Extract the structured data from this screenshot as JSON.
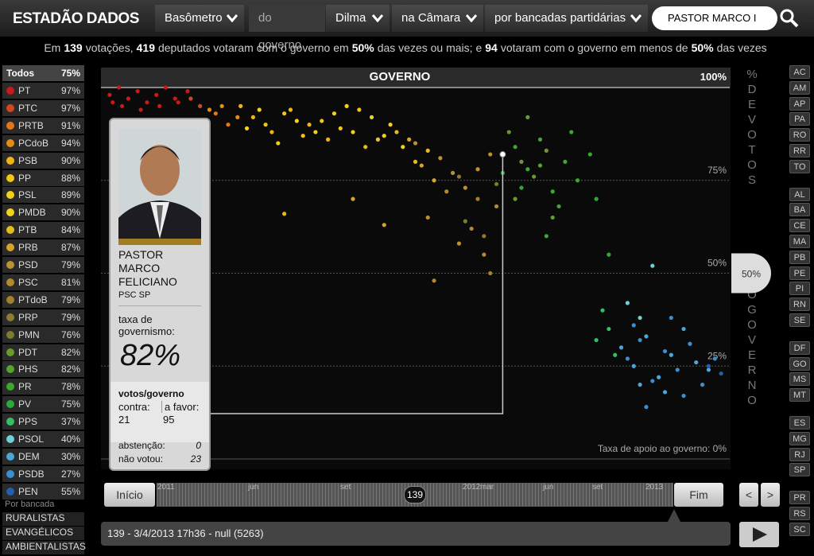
{
  "header": {
    "logo": "ESTADÃO DADOS",
    "menus": [
      "Basômetro",
      "do governo",
      "Dilma",
      "na Câmara",
      "por bancadas partidárias"
    ],
    "search": "PASTOR MARCO I"
  },
  "summary": [
    "Em",
    "139",
    "votações,",
    "419",
    "deputados votaram com o governo em",
    "50%",
    "das vezes ou mais; e",
    "94",
    "votaram com o governo em menos de",
    "50%",
    "das vezes"
  ],
  "sidebar": {
    "all": {
      "name": "Todos",
      "pct": {
        "value": 75,
        "label": "75%"
      }
    },
    "parties": [
      {
        "name": "PT",
        "color": "#c8191b",
        "pct": {
          "value": 97,
          "label": "97%"
        },
        "dots": {
          "x": [
            1,
            2.5,
            4,
            5.5,
            7,
            8.5,
            10,
            11.5,
            3,
            6,
            9,
            12,
            1.5,
            13.5
          ],
          "y": [
            98,
            100,
            97,
            99,
            96,
            98,
            100,
            97,
            95,
            94,
            95,
            96,
            96,
            99
          ]
        }
      },
      {
        "name": "PTC",
        "color": "#d4461e",
        "pct": {
          "value": 97,
          "label": "97%"
        },
        "dots": {
          "x": [
            14,
            15.5
          ],
          "y": [
            97,
            95
          ]
        }
      },
      {
        "name": "PRTB",
        "color": "#e0781a",
        "pct": {
          "value": 91,
          "label": "91%"
        },
        "dots": {
          "x": [
            18,
            20
          ],
          "y": [
            93,
            90
          ]
        }
      },
      {
        "name": "PCdoB",
        "color": "#e68c15",
        "pct": {
          "value": 94,
          "label": "94%"
        },
        "dots": {
          "x": [
            19,
            21.5,
            17
          ],
          "y": [
            95,
            92,
            94
          ]
        }
      },
      {
        "name": "PSB",
        "color": "#f0b50f",
        "pct": {
          "value": 90,
          "label": "90%"
        },
        "dots": {
          "x": [
            24,
            27,
            30,
            33,
            36,
            22
          ],
          "y": [
            92,
            88,
            94,
            90,
            86,
            95
          ]
        }
      },
      {
        "name": "PP",
        "color": "#f2c615",
        "pct": {
          "value": 88,
          "label": "88%"
        },
        "dots": {
          "x": [
            26,
            29,
            32,
            35,
            38,
            41,
            44
          ],
          "y": [
            90,
            93,
            87,
            91,
            89,
            94,
            86
          ]
        }
      },
      {
        "name": "PSL",
        "color": "#f2d018",
        "pct": {
          "value": 89,
          "label": "89%"
        },
        "dots": {
          "x": [
            28,
            34
          ],
          "y": [
            85,
            88
          ]
        }
      },
      {
        "name": "PMDB",
        "color": "#f3d31a",
        "pct": {
          "value": 90,
          "label": "90%"
        },
        "dots": {
          "x": [
            23,
            25,
            31,
            37,
            40,
            43,
            46,
            48,
            39,
            45
          ],
          "y": [
            89,
            94,
            91,
            93,
            88,
            92,
            90,
            84,
            95,
            87
          ]
        }
      },
      {
        "name": "PTB",
        "color": "#e2bd1b",
        "pct": {
          "value": 84,
          "label": "84%"
        },
        "dots": {
          "x": [
            42,
            47,
            50,
            52,
            29
          ],
          "y": [
            84,
            88,
            80,
            83,
            66
          ]
        }
      },
      {
        "name": "PRB",
        "color": "#d4a52a",
        "pct": {
          "value": 87,
          "label": "87%"
        },
        "dots": {
          "x": [
            49,
            51,
            53,
            40,
            45
          ],
          "y": [
            86,
            79,
            75,
            70,
            63
          ]
        }
      },
      {
        "name": "PSD",
        "color": "#bc9230",
        "pct": {
          "value": 79,
          "label": "79%"
        },
        "dots": {
          "x": [
            50,
            54,
            56,
            58,
            60,
            62,
            57,
            52
          ],
          "y": [
            85,
            81,
            77,
            73,
            78,
            82,
            58,
            65
          ]
        }
      },
      {
        "name": "PSC",
        "color": "#b28a30",
        "pct": {
          "value": 81,
          "label": "81%"
        },
        "dots": {
          "x": [
            55,
            59,
            61,
            63,
            53
          ],
          "y": [
            72,
            62,
            55,
            68,
            48
          ]
        }
      },
      {
        "name": "PTdoB",
        "color": "#a58030",
        "pct": {
          "value": 79,
          "label": "79%"
        },
        "dots": {
          "x": [
            60,
            62
          ],
          "y": [
            70,
            50
          ]
        }
      },
      {
        "name": "PRP",
        "color": "#8f7b35",
        "pct": {
          "value": 79,
          "label": "79%"
        },
        "dots": {
          "x": [
            57,
            61
          ],
          "y": [
            76,
            60
          ]
        }
      },
      {
        "name": "PMN",
        "color": "#7d7d30",
        "pct": {
          "value": 76,
          "label": "76%"
        },
        "dots": {
          "x": [
            63,
            58
          ],
          "y": [
            74,
            64
          ]
        }
      },
      {
        "name": "PDT",
        "color": "#6a9a2c",
        "pct": {
          "value": 82,
          "label": "82%"
        },
        "dots": {
          "x": [
            65,
            67,
            69,
            71,
            66
          ],
          "y": [
            88,
            80,
            76,
            83,
            70
          ]
        }
      },
      {
        "name": "PHS",
        "color": "#55a52b",
        "pct": {
          "value": 82,
          "label": "82%"
        },
        "dots": {
          "x": [
            68,
            70,
            72
          ],
          "y": [
            92,
            79,
            65
          ]
        }
      },
      {
        "name": "PR",
        "color": "#3ca82e",
        "pct": {
          "value": 78,
          "label": "78%"
        },
        "dots": {
          "x": [
            66,
            68,
            70,
            72,
            74,
            76,
            78,
            73,
            75,
            71
          ],
          "y": [
            84,
            78,
            86,
            72,
            80,
            75,
            82,
            68,
            88,
            60
          ]
        }
      },
      {
        "name": "PV",
        "color": "#2ea838",
        "pct": {
          "value": 75,
          "label": "75%"
        },
        "dots": {
          "x": [
            64,
            67,
            79,
            81
          ],
          "y": [
            77,
            73,
            70,
            55
          ]
        }
      },
      {
        "name": "PPS",
        "color": "#33c060",
        "pct": {
          "value": 37,
          "label": "37%"
        },
        "dots": {
          "x": [
            80,
            81,
            79,
            82
          ],
          "y": [
            40,
            35,
            32,
            28
          ]
        }
      },
      {
        "name": "PSOL",
        "color": "#6fd0d8",
        "pct": {
          "value": 40,
          "label": "40%"
        },
        "dots": {
          "x": [
            84,
            86,
            88
          ],
          "y": [
            42,
            38,
            52
          ]
        }
      },
      {
        "name": "DEM",
        "color": "#4aa7d8",
        "pct": {
          "value": 30,
          "label": "30%"
        },
        "dots": {
          "x": [
            83,
            85,
            87,
            89,
            91,
            93,
            95,
            97,
            90,
            86
          ],
          "y": [
            30,
            25,
            33,
            22,
            28,
            35,
            26,
            24,
            18,
            20
          ]
        }
      },
      {
        "name": "PSDB",
        "color": "#3a8fd0",
        "pct": {
          "value": 27,
          "label": "27%"
        },
        "dots": {
          "x": [
            84,
            86,
            88,
            90,
            92,
            94,
            96,
            98,
            87,
            93,
            85,
            91
          ],
          "y": [
            27,
            32,
            21,
            29,
            24,
            31,
            20,
            27,
            14,
            17,
            36,
            38
          ]
        }
      },
      {
        "name": "PEN",
        "color": "#2060b0",
        "pct": {
          "value": 55,
          "label": "55%"
        },
        "dots": {
          "x": [
            97,
            99
          ],
          "y": [
            25,
            23
          ]
        }
      }
    ],
    "group_title": "Por bancada",
    "groups": [
      "RURALISTAS",
      "EVANGÉLICOS",
      "AMBIENTALISTAS"
    ]
  },
  "plot": {
    "title": "GOVERNO",
    "ylim": [
      0,
      100
    ],
    "xlim": [
      0,
      100
    ],
    "yticks": [
      {
        "value": 100,
        "label": "100%"
      },
      {
        "value": 75,
        "label": "75%"
      },
      {
        "value": 50,
        "label": "50%"
      },
      {
        "value": 25,
        "label": "25%"
      },
      {
        "value": 0,
        "label": "Taxa de apoio ao governo: 0%"
      }
    ],
    "axis_top": "% DE VOTOS",
    "axis_bottom": "O GOVERNO",
    "threshold": {
      "value": 50,
      "label": "50%"
    },
    "selected": {
      "x": 64
    }
  },
  "card": {
    "name": "PASTOR MARCO FELICIANO",
    "party": "PSC SP",
    "rate_title": "taxa de governismo:",
    "rate": {
      "value": 82,
      "label": "82%"
    },
    "votes_title": "votos/governo",
    "against_label": "contra:",
    "against": 21,
    "favor_label": "a favor:",
    "favor": 95,
    "abstention_label": "abstenção:",
    "abstention": 0,
    "absent_label": "não votou:",
    "absent": 23
  },
  "states": [
    [
      "AC",
      "AM",
      "AP",
      "PA",
      "RO",
      "RR",
      "TO"
    ],
    [
      "AL",
      "BA",
      "CE",
      "MA",
      "PB",
      "PE",
      "PI",
      "RN",
      "SE"
    ],
    [
      "DF",
      "GO",
      "MS",
      "MT"
    ],
    [
      "ES",
      "MG",
      "RJ",
      "SP"
    ],
    [
      "PR",
      "RS",
      "SC"
    ]
  ],
  "timeline": {
    "start": "Início",
    "end": "Fim",
    "labels": [
      "2011",
      "jun",
      "set",
      "2012",
      "mar",
      "jun",
      "set",
      "2013"
    ],
    "knob": "139",
    "prev": "<",
    "next": ">",
    "status": "139 - 3/4/2013 17h36 - null (5263)"
  }
}
